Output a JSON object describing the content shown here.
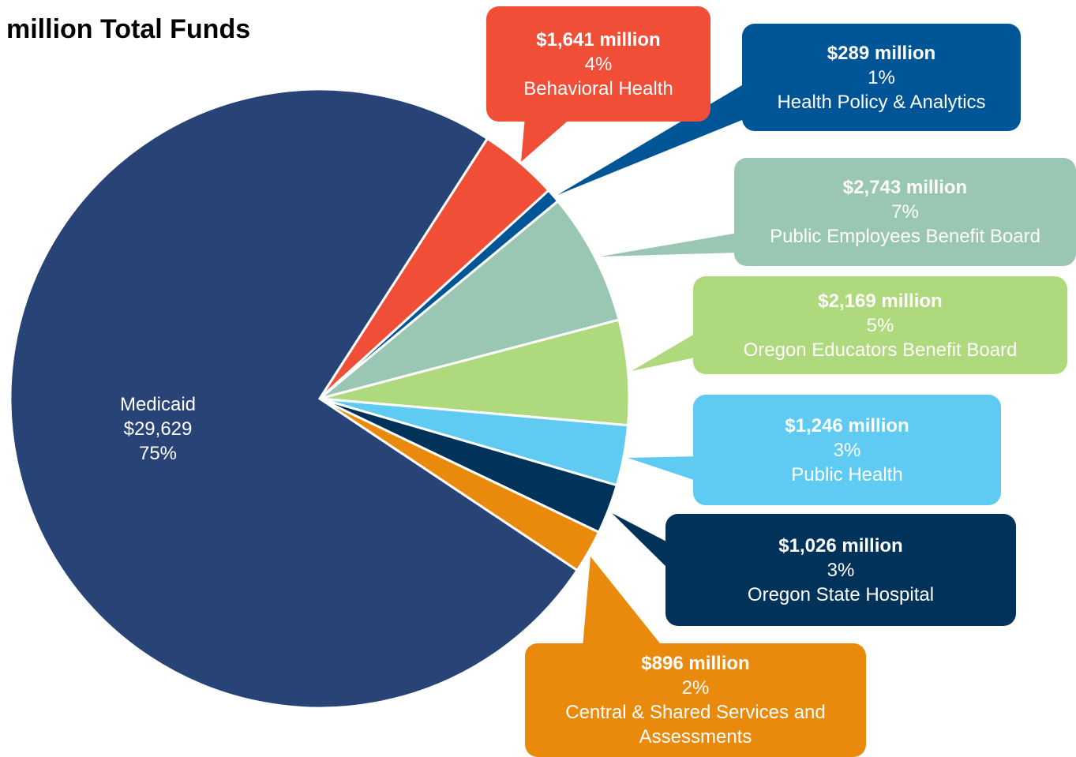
{
  "chart_data": {
    "type": "pie",
    "title": "million Total Funds",
    "categories": [
      "Behavioral Health",
      "Health Policy & Analytics",
      "Public Employees Benefit Board",
      "Oregon Educators Benefit Board",
      "Public Health",
      "Oregon State Hospital",
      "Central & Shared Services and Assessments",
      "Medicaid"
    ],
    "values": [
      1641,
      289,
      2743,
      2169,
      1246,
      1026,
      896,
      29629
    ],
    "value_labels": [
      "$1,641 million",
      "$289 million",
      "$2,743 million",
      "$2,169 million",
      "$1,246 million",
      "$1,026 million",
      "$896 million",
      "$29,629"
    ],
    "percent_labels": [
      "4%",
      "1%",
      "7%",
      "5%",
      "3%",
      "3%",
      "2%",
      "75%"
    ],
    "colors": [
      "#f04e37",
      "#005596",
      "#99c7b3",
      "#aed97c",
      "#5fcbf2",
      "#00325a",
      "#e98a0c",
      "#284476"
    ]
  }
}
